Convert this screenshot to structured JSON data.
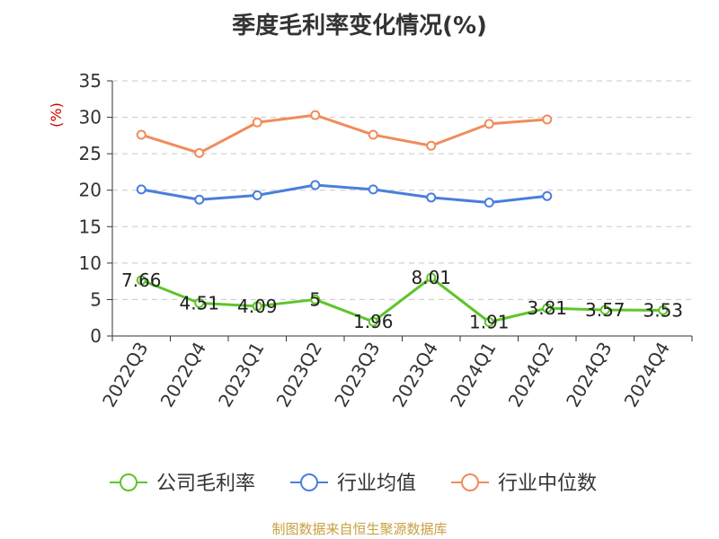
{
  "chart_data": {
    "type": "line",
    "title": "季度毛利率变化情况(%)",
    "ylabel": "(%)",
    "ylim": [
      0,
      35
    ],
    "yticks": [
      0,
      5,
      10,
      15,
      20,
      25,
      30,
      35
    ],
    "grid": true,
    "legend_position": "bottom",
    "categories": [
      "2022Q3",
      "2022Q4",
      "2023Q1",
      "2023Q2",
      "2023Q3",
      "2023Q4",
      "2024Q1",
      "2024Q2",
      "2024Q3",
      "2024Q4"
    ],
    "series": [
      {
        "name": "公司毛利率",
        "color": "#5fc42a",
        "values": [
          7.66,
          4.51,
          4.09,
          5,
          1.96,
          8.01,
          1.91,
          3.81,
          3.57,
          3.53
        ],
        "labels": [
          "7.66",
          "4.51",
          "4.09",
          "5",
          "1.96",
          "8.01",
          "1.91",
          "3.81",
          "3.57",
          "3.53"
        ]
      },
      {
        "name": "行业均值",
        "color": "#4a7fd9",
        "values": [
          20.1,
          18.7,
          19.3,
          20.7,
          20.1,
          19.0,
          18.3,
          19.2,
          null,
          null
        ]
      },
      {
        "name": "行业中位数",
        "color": "#f08c5a",
        "values": [
          27.6,
          25.1,
          29.3,
          30.3,
          27.6,
          26.1,
          29.1,
          29.7,
          null,
          null
        ]
      }
    ]
  },
  "source": "制图数据来自恒生聚源数据库"
}
